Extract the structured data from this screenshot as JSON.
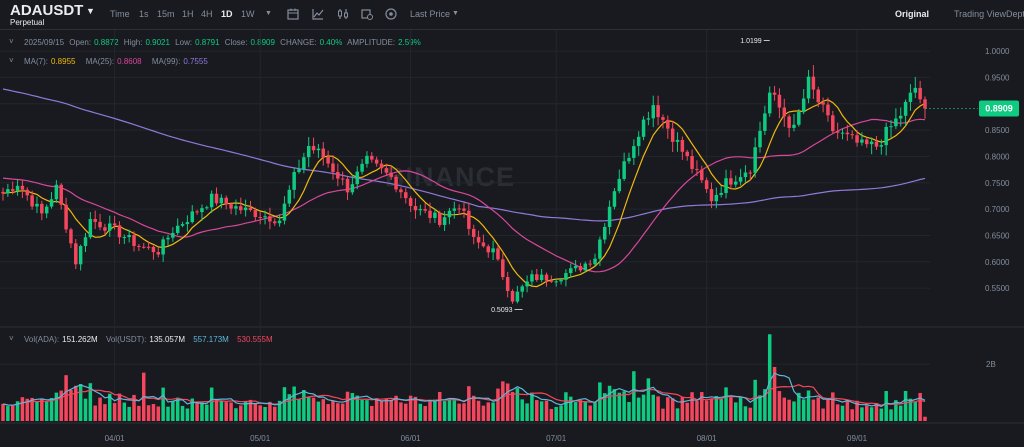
{
  "header": {
    "symbol": "ADAUSDT",
    "contract": "Perpetual",
    "timeframes": [
      "Time",
      "1s",
      "15m",
      "1H",
      "4H",
      "1D",
      "1W"
    ],
    "active_timeframe": "1D",
    "price_type": "Last Price",
    "views": {
      "original": "Original",
      "tradingview": "Trading View",
      "depth": "Depth"
    }
  },
  "ohlc": {
    "date": "2025/09/15",
    "open_label": "Open:",
    "open": "0.8872",
    "high_label": "High:",
    "high": "0.9021",
    "low_label": "Low:",
    "low": "0.8791",
    "close_label": "Close:",
    "close": "0.8909",
    "change_label": "CHANGE:",
    "change": "0.40%",
    "amplitude_label": "AMPLITUDE:",
    "amplitude": "2.59%"
  },
  "ma_legend": {
    "ma7_label": "MA(7):",
    "ma7": "0.8955",
    "ma25_label": "MA(25):",
    "ma25": "0.8608",
    "ma99_label": "MA(99):",
    "ma99": "0.7555"
  },
  "vol_legend": {
    "vol_ada_label": "Vol(ADA):",
    "vol_ada": "151.262M",
    "vol_usdt_label": "Vol(USDT):",
    "vol_usdt": "135.057M",
    "vol_ma1": "557.173M",
    "vol_ma2": "530.555M"
  },
  "watermark": "BINANCE",
  "colors": {
    "bg": "#181a20",
    "up": "#0ecb81",
    "down": "#f6465d",
    "ma7": "#f0b90b",
    "ma25": "#d9479a",
    "ma99": "#8f7ad9",
    "vol_ma1": "#5fb7d9",
    "vol_ma2": "#f6465d",
    "grid": "#23262d"
  },
  "chart_data": {
    "type": "candlestick",
    "ylim": [
      0.48,
      1.04
    ],
    "price_ticks": [
      "1.0000",
      "0.9500",
      "0.9000",
      "0.8500",
      "0.8000",
      "0.7500",
      "0.7000",
      "0.6500",
      "0.6000",
      "0.5500"
    ],
    "price_tick_values": [
      1.0,
      0.95,
      0.9,
      0.85,
      0.8,
      0.75,
      0.7,
      0.65,
      0.6,
      0.55
    ],
    "x_ticks": [
      "04/01",
      "05/01",
      "06/01",
      "07/01",
      "08/01",
      "09/01"
    ],
    "current_price": "0.8909",
    "high_marker": "1.0199",
    "low_marker": "0.5093",
    "volume_tick": "2B",
    "volume_tick_value": 2000000000,
    "volume_max": 3200000000,
    "anchors": [
      [
        "03/09",
        0.73
      ],
      [
        "03/12",
        0.75
      ],
      [
        "03/17",
        0.69
      ],
      [
        "03/20",
        0.74
      ],
      [
        "03/24",
        0.6
      ],
      [
        "03/27",
        0.68
      ],
      [
        "04/01",
        0.66
      ],
      [
        "04/06",
        0.63
      ],
      [
        "04/10",
        0.62
      ],
      [
        "04/13",
        0.66
      ],
      [
        "04/21",
        0.72
      ],
      [
        "04/27",
        0.7
      ],
      [
        "05/05",
        0.68
      ],
      [
        "05/08",
        0.76
      ],
      [
        "05/11",
        0.82
      ],
      [
        "05/14",
        0.8
      ],
      [
        "05/19",
        0.74
      ],
      [
        "05/23",
        0.79
      ],
      [
        "05/28",
        0.76
      ],
      [
        "06/02",
        0.7
      ],
      [
        "06/07",
        0.68
      ],
      [
        "06/11",
        0.71
      ],
      [
        "06/14",
        0.64
      ],
      [
        "06/18",
        0.62
      ],
      [
        "06/22",
        0.53
      ],
      [
        "06/26",
        0.57
      ],
      [
        "07/01",
        0.57
      ],
      [
        "07/06",
        0.59
      ],
      [
        "07/09",
        0.61
      ],
      [
        "07/13",
        0.74
      ],
      [
        "07/18",
        0.85
      ],
      [
        "07/21",
        0.9
      ],
      [
        "07/27",
        0.81
      ],
      [
        "08/02",
        0.72
      ],
      [
        "08/05",
        0.75
      ],
      [
        "08/10",
        0.78
      ],
      [
        "08/14",
        0.92
      ],
      [
        "08/19",
        0.85
      ],
      [
        "08/22",
        0.94
      ],
      [
        "08/27",
        0.85
      ],
      [
        "09/02",
        0.82
      ],
      [
        "09/05",
        0.82
      ],
      [
        "09/10",
        0.88
      ],
      [
        "09/13",
        0.93
      ],
      [
        "09/15",
        0.89
      ]
    ]
  }
}
